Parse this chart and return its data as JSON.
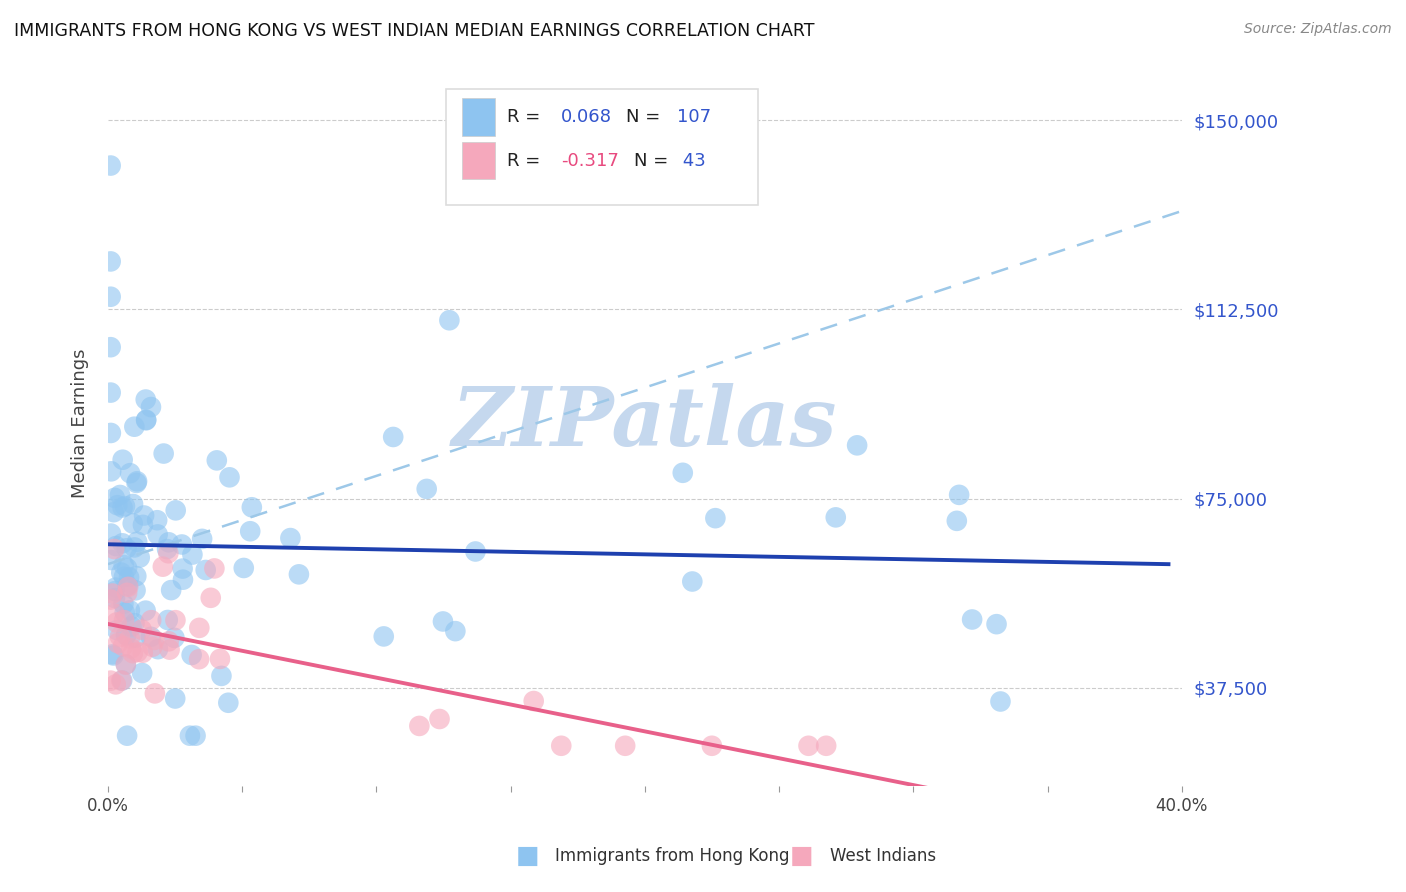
{
  "title": "IMMIGRANTS FROM HONG KONG VS WEST INDIAN MEDIAN EARNINGS CORRELATION CHART",
  "source": "Source: ZipAtlas.com",
  "ylabel": "Median Earnings",
  "xlim": [
    0.0,
    0.4
  ],
  "ylim": [
    18000,
    162000
  ],
  "yticks": [
    37500,
    75000,
    112500,
    150000
  ],
  "ytick_labels": [
    "$37,500",
    "$75,000",
    "$112,500",
    "$150,000"
  ],
  "xticks": [
    0.0,
    0.05,
    0.1,
    0.15,
    0.2,
    0.25,
    0.3,
    0.35,
    0.4
  ],
  "xtick_labels": [
    "0.0%",
    "",
    "",
    "",
    "",
    "",
    "",
    "",
    "40.0%"
  ],
  "blue_R": 0.068,
  "blue_N": 107,
  "pink_R": -0.317,
  "pink_N": 43,
  "blue_color": "#8EC4F0",
  "pink_color": "#F5A8BC",
  "blue_line_color": "#1E40AF",
  "pink_line_color": "#E8608A",
  "dash_line_color": "#9DC8E8",
  "watermark": "ZIPatlas",
  "watermark_color": "#C5D8EE",
  "background_color": "#FFFFFF",
  "legend_color": "#3355CC",
  "pink_R_color": "#E84A7F"
}
